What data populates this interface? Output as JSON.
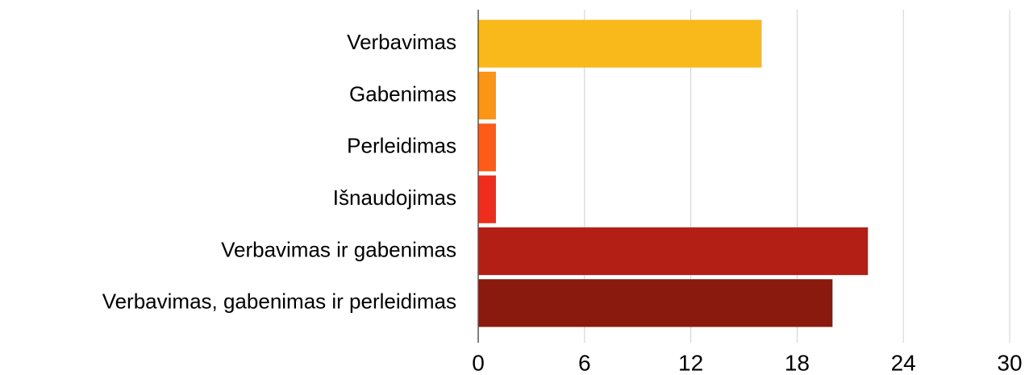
{
  "chart_data": {
    "type": "bar",
    "orientation": "horizontal",
    "categories": [
      "Verbavimas",
      "Gabenimas",
      "Perleidimas",
      "Išnaudojimas",
      "Verbavimas ir gabenimas",
      "Verbavimas, gabenimas ir perleidimas"
    ],
    "values": [
      16,
      1,
      1,
      1,
      22,
      20
    ],
    "colors": [
      "#f9b91b",
      "#fb9516",
      "#fc5c17",
      "#ee2d1e",
      "#b41f15",
      "#8a1a0e"
    ],
    "xlim": [
      0,
      30
    ],
    "xticks": [
      0,
      6,
      12,
      18,
      24,
      30
    ],
    "grid": true
  }
}
